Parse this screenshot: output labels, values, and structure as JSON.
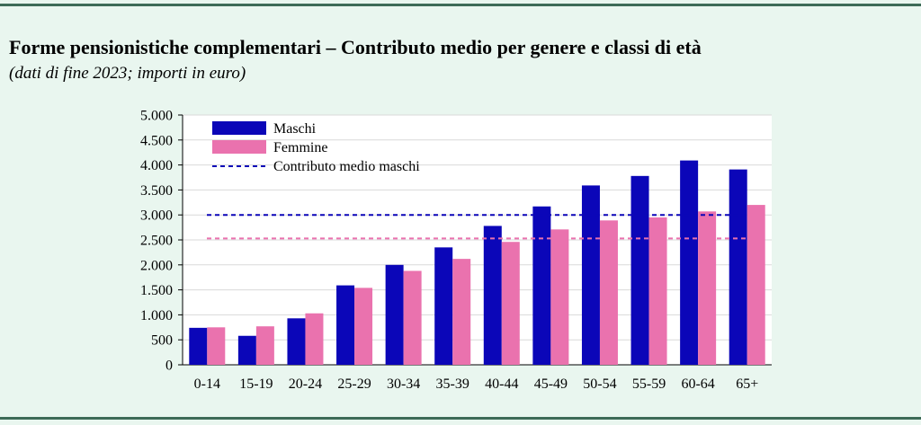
{
  "title": "Forme pensionistiche complementari – Contributo medio per genere e classi di età",
  "subtitle": "(dati di fine 2023; importi in euro)",
  "colors": {
    "maschi": "#0b06b8",
    "femmine": "#ea72ae",
    "maschi_avg_line": "#0b06b8",
    "femmine_avg_line": "#ea72ae"
  },
  "chart_data": {
    "type": "bar",
    "categories": [
      "0-14",
      "15-19",
      "20-24",
      "25-29",
      "30-34",
      "35-39",
      "40-44",
      "45-49",
      "50-54",
      "55-59",
      "60-64",
      "65+"
    ],
    "series": [
      {
        "name": "Maschi",
        "values": [
          740,
          580,
          930,
          1590,
          2000,
          2350,
          2780,
          3170,
          3590,
          3780,
          4090,
          3910
        ]
      },
      {
        "name": "Femmine",
        "values": [
          750,
          770,
          1030,
          1540,
          1880,
          2120,
          2460,
          2710,
          2890,
          2950,
          3070,
          3200
        ]
      }
    ],
    "reference_lines": [
      {
        "name": "Contributo medio maschi",
        "value": 3000,
        "style": "dashed",
        "legend": true
      },
      {
        "name": "",
        "value": 2530,
        "style": "dashed",
        "legend": false
      }
    ],
    "ylim": [
      0,
      5000
    ],
    "yticks": [
      0,
      500,
      1000,
      1500,
      2000,
      2500,
      3000,
      3500,
      4000,
      4500,
      5000
    ],
    "ytick_labels": [
      "0",
      "500",
      "1.000",
      "1.500",
      "2.000",
      "2.500",
      "3.000",
      "3.500",
      "4.000",
      "4.500",
      "5.000"
    ],
    "grid": true,
    "legend_position": "top-left",
    "xlabel": "",
    "ylabel": ""
  }
}
